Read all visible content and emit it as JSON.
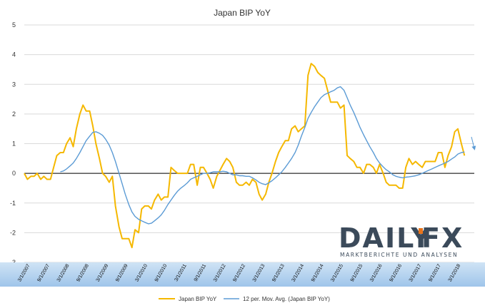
{
  "chart_data": {
    "type": "line",
    "title": "Japan BIP YoY",
    "ylim": [
      -3,
      5
    ],
    "yticks": [
      5,
      4,
      3,
      2,
      1,
      0,
      -1,
      -2,
      -3
    ],
    "x_labels": [
      "3/1/2007",
      "9/1/2007",
      "3/1/2008",
      "9/1/2008",
      "3/1/2009",
      "9/1/2009",
      "3/1/2010",
      "9/1/2010",
      "3/1/2011",
      "9/1/2011",
      "3/1/2012",
      "9/1/2012",
      "3/1/2013",
      "9/1/2013",
      "3/1/2014",
      "9/1/2014",
      "3/1/2015",
      "9/1/2015",
      "3/1/2016",
      "9/1/2016",
      "3/1/2017",
      "9/1/2017",
      "3/1/2018"
    ],
    "x_start": 2007.0,
    "x_end": 2018.5,
    "series": [
      {
        "name": "Japan BIP YoY",
        "color": "#F5B800",
        "points": [
          [
            2007.0,
            0.0
          ],
          [
            2007.08,
            -0.2
          ],
          [
            2007.17,
            -0.1
          ],
          [
            2007.25,
            -0.1
          ],
          [
            2007.33,
            0.0
          ],
          [
            2007.42,
            -0.2
          ],
          [
            2007.5,
            -0.1
          ],
          [
            2007.58,
            -0.2
          ],
          [
            2007.67,
            -0.2
          ],
          [
            2007.75,
            0.2
          ],
          [
            2007.83,
            0.6
          ],
          [
            2007.92,
            0.7
          ],
          [
            2008.0,
            0.7
          ],
          [
            2008.08,
            1.0
          ],
          [
            2008.17,
            1.2
          ],
          [
            2008.25,
            0.9
          ],
          [
            2008.33,
            1.5
          ],
          [
            2008.42,
            2.0
          ],
          [
            2008.5,
            2.3
          ],
          [
            2008.58,
            2.1
          ],
          [
            2008.67,
            2.1
          ],
          [
            2008.75,
            1.6
          ],
          [
            2008.83,
            1.0
          ],
          [
            2008.92,
            0.5
          ],
          [
            2009.0,
            0.0
          ],
          [
            2009.08,
            -0.1
          ],
          [
            2009.17,
            -0.3
          ],
          [
            2009.25,
            -0.1
          ],
          [
            2009.33,
            -1.1
          ],
          [
            2009.42,
            -1.8
          ],
          [
            2009.5,
            -2.2
          ],
          [
            2009.58,
            -2.2
          ],
          [
            2009.67,
            -2.2
          ],
          [
            2009.75,
            -2.5
          ],
          [
            2009.83,
            -1.9
          ],
          [
            2009.92,
            -2.0
          ],
          [
            2010.0,
            -1.2
          ],
          [
            2010.08,
            -1.1
          ],
          [
            2010.17,
            -1.1
          ],
          [
            2010.25,
            -1.2
          ],
          [
            2010.33,
            -0.9
          ],
          [
            2010.42,
            -0.7
          ],
          [
            2010.5,
            -0.9
          ],
          [
            2010.58,
            -0.8
          ],
          [
            2010.67,
            -0.8
          ],
          [
            2010.75,
            0.2
          ],
          [
            2010.83,
            0.1
          ],
          [
            2010.92,
            0.0
          ],
          [
            2011.0,
            0.0
          ],
          [
            2011.08,
            0.0
          ],
          [
            2011.17,
            0.0
          ],
          [
            2011.25,
            0.3
          ],
          [
            2011.33,
            0.3
          ],
          [
            2011.42,
            -0.4
          ],
          [
            2011.5,
            0.2
          ],
          [
            2011.58,
            0.2
          ],
          [
            2011.67,
            0.0
          ],
          [
            2011.75,
            -0.2
          ],
          [
            2011.83,
            -0.5
          ],
          [
            2011.92,
            -0.1
          ],
          [
            2012.0,
            0.1
          ],
          [
            2012.08,
            0.3
          ],
          [
            2012.17,
            0.5
          ],
          [
            2012.25,
            0.4
          ],
          [
            2012.33,
            0.2
          ],
          [
            2012.42,
            -0.3
          ],
          [
            2012.5,
            -0.4
          ],
          [
            2012.58,
            -0.4
          ],
          [
            2012.67,
            -0.3
          ],
          [
            2012.75,
            -0.4
          ],
          [
            2012.83,
            -0.2
          ],
          [
            2012.92,
            -0.3
          ],
          [
            2013.0,
            -0.7
          ],
          [
            2013.08,
            -0.9
          ],
          [
            2013.17,
            -0.7
          ],
          [
            2013.25,
            -0.3
          ],
          [
            2013.33,
            0.0
          ],
          [
            2013.42,
            0.4
          ],
          [
            2013.5,
            0.7
          ],
          [
            2013.58,
            0.9
          ],
          [
            2013.67,
            1.1
          ],
          [
            2013.75,
            1.1
          ],
          [
            2013.83,
            1.5
          ],
          [
            2013.92,
            1.6
          ],
          [
            2014.0,
            1.4
          ],
          [
            2014.08,
            1.5
          ],
          [
            2014.17,
            1.6
          ],
          [
            2014.25,
            3.3
          ],
          [
            2014.33,
            3.7
          ],
          [
            2014.42,
            3.6
          ],
          [
            2014.5,
            3.4
          ],
          [
            2014.58,
            3.3
          ],
          [
            2014.67,
            3.2
          ],
          [
            2014.75,
            2.8
          ],
          [
            2014.83,
            2.4
          ],
          [
            2014.92,
            2.4
          ],
          [
            2015.0,
            2.4
          ],
          [
            2015.08,
            2.2
          ],
          [
            2015.17,
            2.3
          ],
          [
            2015.25,
            0.6
          ],
          [
            2015.33,
            0.5
          ],
          [
            2015.42,
            0.4
          ],
          [
            2015.5,
            0.2
          ],
          [
            2015.58,
            0.2
          ],
          [
            2015.67,
            0.0
          ],
          [
            2015.75,
            0.3
          ],
          [
            2015.83,
            0.3
          ],
          [
            2015.92,
            0.2
          ],
          [
            2016.0,
            0.0
          ],
          [
            2016.08,
            0.3
          ],
          [
            2016.17,
            0.0
          ],
          [
            2016.25,
            -0.3
          ],
          [
            2016.33,
            -0.4
          ],
          [
            2016.42,
            -0.4
          ],
          [
            2016.5,
            -0.4
          ],
          [
            2016.58,
            -0.5
          ],
          [
            2016.67,
            -0.5
          ],
          [
            2016.75,
            0.2
          ],
          [
            2016.83,
            0.5
          ],
          [
            2016.92,
            0.3
          ],
          [
            2017.0,
            0.4
          ],
          [
            2017.08,
            0.3
          ],
          [
            2017.17,
            0.2
          ],
          [
            2017.25,
            0.4
          ],
          [
            2017.33,
            0.4
          ],
          [
            2017.42,
            0.4
          ],
          [
            2017.5,
            0.4
          ],
          [
            2017.58,
            0.7
          ],
          [
            2017.67,
            0.7
          ],
          [
            2017.75,
            0.2
          ],
          [
            2017.83,
            0.6
          ],
          [
            2017.92,
            0.9
          ],
          [
            2018.0,
            1.4
          ],
          [
            2018.08,
            1.5
          ],
          [
            2018.17,
            1.0
          ],
          [
            2018.25,
            0.6
          ]
        ]
      },
      {
        "name": "12 per. Mov. Avg. (Japan BIP YoY)",
        "color": "#5B9BD5",
        "points": [
          [
            2007.92,
            0.05
          ],
          [
            2008.0,
            0.08
          ],
          [
            2008.08,
            0.15
          ],
          [
            2008.17,
            0.25
          ],
          [
            2008.25,
            0.35
          ],
          [
            2008.33,
            0.5
          ],
          [
            2008.42,
            0.7
          ],
          [
            2008.5,
            0.9
          ],
          [
            2008.58,
            1.1
          ],
          [
            2008.67,
            1.25
          ],
          [
            2008.75,
            1.38
          ],
          [
            2008.83,
            1.4
          ],
          [
            2008.92,
            1.35
          ],
          [
            2009.0,
            1.28
          ],
          [
            2009.08,
            1.15
          ],
          [
            2009.17,
            0.95
          ],
          [
            2009.25,
            0.7
          ],
          [
            2009.33,
            0.4
          ],
          [
            2009.42,
            0.0
          ],
          [
            2009.5,
            -0.35
          ],
          [
            2009.58,
            -0.7
          ],
          [
            2009.67,
            -1.05
          ],
          [
            2009.75,
            -1.3
          ],
          [
            2009.83,
            -1.45
          ],
          [
            2009.92,
            -1.55
          ],
          [
            2010.0,
            -1.6
          ],
          [
            2010.08,
            -1.65
          ],
          [
            2010.17,
            -1.7
          ],
          [
            2010.25,
            -1.68
          ],
          [
            2010.33,
            -1.6
          ],
          [
            2010.42,
            -1.5
          ],
          [
            2010.5,
            -1.4
          ],
          [
            2010.58,
            -1.25
          ],
          [
            2010.67,
            -1.05
          ],
          [
            2010.75,
            -0.9
          ],
          [
            2010.83,
            -0.75
          ],
          [
            2010.92,
            -0.6
          ],
          [
            2011.0,
            -0.5
          ],
          [
            2011.08,
            -0.42
          ],
          [
            2011.17,
            -0.32
          ],
          [
            2011.25,
            -0.2
          ],
          [
            2011.33,
            -0.15
          ],
          [
            2011.42,
            -0.1
          ],
          [
            2011.5,
            -0.05
          ],
          [
            2011.58,
            0.0
          ],
          [
            2011.67,
            0.0
          ],
          [
            2011.75,
            0.02
          ],
          [
            2011.83,
            0.05
          ],
          [
            2011.92,
            0.05
          ],
          [
            2012.0,
            0.05
          ],
          [
            2012.08,
            0.07
          ],
          [
            2012.17,
            0.05
          ],
          [
            2012.25,
            0.0
          ],
          [
            2012.33,
            -0.05
          ],
          [
            2012.42,
            -0.05
          ],
          [
            2012.5,
            -0.08
          ],
          [
            2012.58,
            -0.08
          ],
          [
            2012.67,
            -0.1
          ],
          [
            2012.75,
            -0.1
          ],
          [
            2012.83,
            -0.15
          ],
          [
            2012.92,
            -0.22
          ],
          [
            2013.0,
            -0.3
          ],
          [
            2013.08,
            -0.35
          ],
          [
            2013.17,
            -0.38
          ],
          [
            2013.25,
            -0.32
          ],
          [
            2013.33,
            -0.25
          ],
          [
            2013.42,
            -0.15
          ],
          [
            2013.5,
            -0.05
          ],
          [
            2013.58,
            0.05
          ],
          [
            2013.67,
            0.2
          ],
          [
            2013.75,
            0.35
          ],
          [
            2013.83,
            0.5
          ],
          [
            2013.92,
            0.7
          ],
          [
            2014.0,
            0.95
          ],
          [
            2014.08,
            1.25
          ],
          [
            2014.17,
            1.55
          ],
          [
            2014.25,
            1.85
          ],
          [
            2014.33,
            2.05
          ],
          [
            2014.42,
            2.25
          ],
          [
            2014.5,
            2.4
          ],
          [
            2014.58,
            2.55
          ],
          [
            2014.67,
            2.65
          ],
          [
            2014.75,
            2.7
          ],
          [
            2014.83,
            2.75
          ],
          [
            2014.92,
            2.8
          ],
          [
            2015.0,
            2.88
          ],
          [
            2015.08,
            2.92
          ],
          [
            2015.17,
            2.8
          ],
          [
            2015.25,
            2.55
          ],
          [
            2015.33,
            2.3
          ],
          [
            2015.42,
            2.05
          ],
          [
            2015.5,
            1.8
          ],
          [
            2015.58,
            1.55
          ],
          [
            2015.67,
            1.3
          ],
          [
            2015.75,
            1.1
          ],
          [
            2015.83,
            0.9
          ],
          [
            2015.92,
            0.7
          ],
          [
            2016.0,
            0.5
          ],
          [
            2016.08,
            0.35
          ],
          [
            2016.17,
            0.22
          ],
          [
            2016.25,
            0.12
          ],
          [
            2016.33,
            0.05
          ],
          [
            2016.42,
            -0.05
          ],
          [
            2016.5,
            -0.1
          ],
          [
            2016.58,
            -0.13
          ],
          [
            2016.67,
            -0.15
          ],
          [
            2016.75,
            -0.13
          ],
          [
            2016.83,
            -0.12
          ],
          [
            2016.92,
            -0.1
          ],
          [
            2017.0,
            -0.08
          ],
          [
            2017.08,
            -0.05
          ],
          [
            2017.17,
            0.0
          ],
          [
            2017.25,
            0.05
          ],
          [
            2017.33,
            0.1
          ],
          [
            2017.42,
            0.15
          ],
          [
            2017.5,
            0.2
          ],
          [
            2017.58,
            0.25
          ],
          [
            2017.67,
            0.3
          ],
          [
            2017.75,
            0.35
          ],
          [
            2017.83,
            0.4
          ],
          [
            2017.92,
            0.48
          ],
          [
            2018.0,
            0.55
          ],
          [
            2018.08,
            0.65
          ],
          [
            2018.17,
            0.7
          ],
          [
            2018.25,
            0.72
          ]
        ]
      }
    ]
  },
  "watermark": {
    "brand_a": "DAILY",
    "brand_b": "FX",
    "tagline": "MARKTBERICHTE UND ANALYSEN",
    "color": "#3b4a5a",
    "accent": "#e8731a"
  }
}
